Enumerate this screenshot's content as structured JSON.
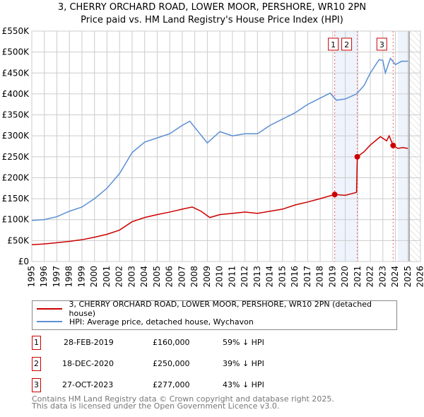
{
  "chart_data": {
    "type": "line",
    "title": "3, CHERRY ORCHARD ROAD, LOWER MOOR, PERSHORE, WR10 2PN",
    "subtitle": "Price paid vs. HM Land Registry's House Price Index (HPI)",
    "xlim": [
      1995,
      2026
    ],
    "ylim": [
      0,
      550000
    ],
    "x_ticks": [
      "1995",
      "1996",
      "1997",
      "1998",
      "1999",
      "2000",
      "2001",
      "2002",
      "2003",
      "2004",
      "2005",
      "2006",
      "2007",
      "2008",
      "2009",
      "2010",
      "2011",
      "2012",
      "2013",
      "2014",
      "2015",
      "2016",
      "2017",
      "2018",
      "2019",
      "2020",
      "2021",
      "2022",
      "2023",
      "2024",
      "2025",
      "2026"
    ],
    "y_ticks": [
      "£0",
      "£50K",
      "£100K",
      "£150K",
      "£200K",
      "£250K",
      "£300K",
      "£350K",
      "£400K",
      "£450K",
      "£500K",
      "£550K"
    ],
    "grid": true,
    "series": [
      {
        "name": "3, CHERRY ORCHARD ROAD, LOWER MOOR, PERSHORE, WR10 2PN (detached house)",
        "color": "#cc0000",
        "x": [
          1995,
          1996,
          1997,
          1998,
          1999,
          2000,
          2001,
          2002,
          2003,
          2004,
          2005,
          2006,
          2007,
          2007.8,
          2008.5,
          2009.2,
          2010,
          2011,
          2012,
          2013,
          2014,
          2015,
          2016,
          2017,
          2018,
          2019.16,
          2020,
          2020.9,
          2020.96,
          2021.5,
          2022,
          2022.8,
          2023.3,
          2023.5,
          2023.82,
          2024.2,
          2024.6,
          2025
        ],
        "y": [
          40000,
          42000,
          45000,
          48000,
          52000,
          58000,
          65000,
          75000,
          95000,
          105000,
          112000,
          118000,
          125000,
          130000,
          120000,
          105000,
          112000,
          115000,
          118000,
          115000,
          120000,
          125000,
          135000,
          142000,
          150000,
          160000,
          158000,
          165000,
          250000,
          262000,
          278000,
          298000,
          288000,
          300000,
          277000,
          270000,
          272000,
          270000
        ]
      },
      {
        "name": "HPI: Average price, detached house, Wychavon",
        "color": "#5b8fd4",
        "x": [
          1995,
          1996,
          1997,
          1998,
          1999,
          2000,
          2001,
          2002,
          2003,
          2004,
          2005,
          2006,
          2007,
          2007.6,
          2008,
          2009,
          2010,
          2011,
          2012,
          2013,
          2014,
          2015,
          2016,
          2017,
          2018,
          2018.8,
          2019.3,
          2020,
          2020.9,
          2021.5,
          2022,
          2022.7,
          2023,
          2023.2,
          2023.6,
          2024,
          2024.5,
          2025
        ],
        "y": [
          98000,
          100000,
          107000,
          120000,
          130000,
          150000,
          175000,
          210000,
          260000,
          285000,
          295000,
          305000,
          325000,
          335000,
          320000,
          283000,
          310000,
          300000,
          305000,
          305000,
          325000,
          340000,
          355000,
          375000,
          390000,
          402000,
          385000,
          388000,
          400000,
          420000,
          450000,
          482000,
          480000,
          450000,
          485000,
          470000,
          478000,
          478000
        ]
      }
    ],
    "sales": [
      {
        "label": "1",
        "x": 2019.16,
        "y": 160000
      },
      {
        "label": "2",
        "x": 2020.96,
        "y": 250000
      },
      {
        "label": "3",
        "x": 2023.82,
        "y": 277000
      }
    ]
  },
  "table": [
    {
      "num": "1",
      "date": "28-FEB-2019",
      "price": "£160,000",
      "delta": "59% ↓ HPI"
    },
    {
      "num": "2",
      "date": "18-DEC-2020",
      "price": "£250,000",
      "delta": "39% ↓ HPI"
    },
    {
      "num": "3",
      "date": "27-OCT-2023",
      "price": "£277,000",
      "delta": "43% ↓ HPI"
    }
  ],
  "footer": {
    "line1": "Contains HM Land Registry data © Crown copyright and database right 2025.",
    "line2": "This data is licensed under the Open Government Licence v3.0."
  }
}
